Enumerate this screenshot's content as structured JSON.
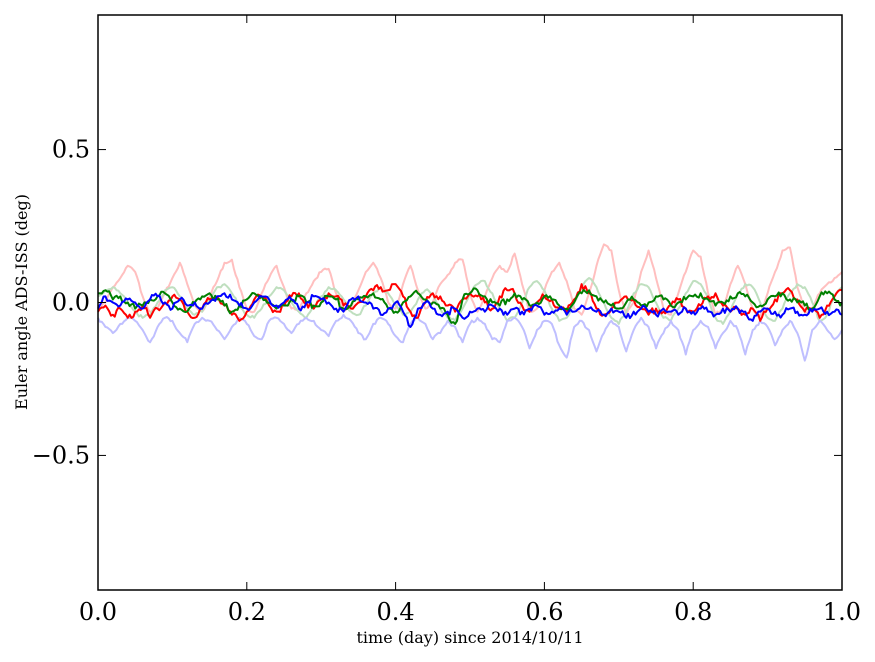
{
  "chart_data": {
    "type": "line",
    "title": "",
    "xlabel": "time (day) since 2014/10/11",
    "ylabel": "Euler angle ADS-ISS (deg)",
    "xlim": [
      0.0,
      1.0
    ],
    "ylim": [
      -0.94,
      0.94
    ],
    "xticks": [
      0.0,
      0.2,
      0.4,
      0.6,
      0.8,
      1.0
    ],
    "xtick_labels": [
      "0.0",
      "0.2",
      "0.4",
      "0.6",
      "0.8",
      "1.0"
    ],
    "yticks": [
      -0.5,
      0.0,
      0.5
    ],
    "ytick_labels": [
      "−0.5",
      "0.0",
      "0.5"
    ],
    "grid": false,
    "x_step": 0.01,
    "series": [
      {
        "name": "light-red",
        "color": "#ffbfbf",
        "values": [
          -0.02,
          0.0,
          0.05,
          0.08,
          0.12,
          0.1,
          0.02,
          -0.03,
          -0.02,
          0.03,
          0.08,
          0.13,
          0.06,
          -0.01,
          -0.03,
          0.02,
          0.07,
          0.13,
          0.14,
          0.05,
          -0.02,
          -0.03,
          0.03,
          0.08,
          0.12,
          0.05,
          -0.02,
          -0.03,
          0.03,
          0.07,
          0.1,
          0.11,
          0.03,
          -0.02,
          -0.02,
          0.04,
          0.1,
          0.13,
          0.08,
          0.0,
          -0.02,
          0.06,
          0.12,
          0.04,
          -0.02,
          0.0,
          0.06,
          0.09,
          0.13,
          0.14,
          0.03,
          -0.03,
          0.02,
          0.08,
          0.12,
          0.1,
          0.16,
          0.06,
          -0.03,
          -0.02,
          0.04,
          0.1,
          0.13,
          0.07,
          -0.02,
          -0.04,
          0.03,
          0.12,
          0.19,
          0.17,
          0.04,
          -0.04,
          0.0,
          0.1,
          0.17,
          0.08,
          -0.02,
          -0.04,
          0.03,
          0.1,
          0.17,
          0.15,
          0.03,
          -0.04,
          -0.02,
          0.06,
          0.12,
          0.06,
          -0.02,
          -0.05,
          0.03,
          0.1,
          0.17,
          0.18,
          0.05,
          -0.03,
          -0.02,
          0.03,
          0.06,
          0.08,
          0.1
        ]
      },
      {
        "name": "light-green",
        "color": "#bfdfbf",
        "values": [
          0.02,
          0.04,
          0.05,
          0.03,
          0.0,
          -0.03,
          -0.05,
          -0.04,
          0.0,
          0.04,
          0.05,
          0.02,
          -0.02,
          -0.04,
          -0.03,
          0.01,
          0.05,
          0.06,
          0.03,
          -0.01,
          -0.04,
          -0.05,
          -0.02,
          0.02,
          0.05,
          0.04,
          0.0,
          -0.03,
          -0.05,
          -0.02,
          0.02,
          0.05,
          0.04,
          0.01,
          -0.03,
          -0.04,
          -0.01,
          0.03,
          0.05,
          0.03,
          -0.01,
          -0.04,
          -0.03,
          0.01,
          0.04,
          0.03,
          -0.02,
          -0.05,
          -0.06,
          -0.02,
          0.03,
          0.06,
          0.07,
          0.03,
          -0.02,
          -0.06,
          -0.05,
          0.0,
          0.05,
          0.07,
          0.04,
          -0.02,
          -0.06,
          -0.05,
          0.0,
          0.05,
          0.08,
          0.05,
          0.0,
          -0.05,
          -0.07,
          -0.03,
          0.03,
          0.06,
          0.05,
          0.0,
          -0.05,
          -0.06,
          -0.02,
          0.03,
          0.07,
          0.06,
          0.01,
          -0.05,
          -0.07,
          -0.03,
          0.03,
          0.06,
          0.05,
          0.0,
          -0.05,
          -0.06,
          -0.02,
          0.03,
          0.06,
          0.05,
          0.0,
          -0.06,
          -0.04,
          0.02,
          0.05
        ]
      },
      {
        "name": "light-blue",
        "color": "#bfbfff",
        "values": [
          -0.05,
          -0.08,
          -0.1,
          -0.07,
          -0.05,
          -0.06,
          -0.09,
          -0.13,
          -0.08,
          -0.05,
          -0.06,
          -0.1,
          -0.13,
          -0.07,
          -0.05,
          -0.06,
          -0.09,
          -0.12,
          -0.08,
          -0.05,
          -0.07,
          -0.11,
          -0.12,
          -0.06,
          -0.05,
          -0.07,
          -0.1,
          -0.07,
          -0.05,
          -0.06,
          -0.09,
          -0.11,
          -0.06,
          -0.04,
          -0.06,
          -0.1,
          -0.12,
          -0.07,
          -0.05,
          -0.07,
          -0.11,
          -0.13,
          -0.07,
          -0.05,
          -0.07,
          -0.12,
          -0.1,
          -0.06,
          -0.08,
          -0.13,
          -0.07,
          -0.05,
          -0.07,
          -0.12,
          -0.13,
          -0.06,
          -0.05,
          -0.08,
          -0.15,
          -0.09,
          -0.06,
          -0.07,
          -0.14,
          -0.18,
          -0.08,
          -0.06,
          -0.09,
          -0.16,
          -0.1,
          -0.06,
          -0.08,
          -0.16,
          -0.09,
          -0.05,
          -0.08,
          -0.15,
          -0.1,
          -0.06,
          -0.09,
          -0.17,
          -0.09,
          -0.06,
          -0.08,
          -0.15,
          -0.1,
          -0.06,
          -0.09,
          -0.17,
          -0.09,
          -0.06,
          -0.08,
          -0.14,
          -0.09,
          -0.06,
          -0.1,
          -0.19,
          -0.09,
          -0.06,
          -0.09,
          -0.12,
          -0.09
        ]
      },
      {
        "name": "red",
        "color": "#ff0000",
        "values": [
          -0.03,
          -0.01,
          -0.04,
          -0.02,
          -0.05,
          -0.03,
          -0.01,
          -0.05,
          -0.02,
          0.0,
          0.02,
          0.01,
          -0.03,
          -0.05,
          -0.02,
          0.01,
          0.02,
          -0.01,
          -0.04,
          -0.06,
          -0.03,
          0.01,
          0.02,
          -0.01,
          -0.03,
          -0.01,
          0.02,
          0.03,
          0.0,
          -0.02,
          0.01,
          0.03,
          0.02,
          -0.01,
          -0.02,
          0.0,
          0.02,
          0.04,
          0.05,
          0.04,
          0.06,
          0.02,
          -0.03,
          -0.05,
          0.0,
          0.03,
          0.02,
          -0.01,
          -0.03,
          0.01,
          0.03,
          0.02,
          0.0,
          -0.02,
          0.02,
          0.04,
          0.03,
          -0.01,
          -0.03,
          0.0,
          0.02,
          0.01,
          -0.02,
          -0.03,
          0.01,
          0.06,
          0.03,
          -0.02,
          -0.04,
          -0.02,
          0.0,
          0.02,
          0.01,
          -0.02,
          -0.04,
          -0.02,
          -0.03,
          -0.01,
          0.01,
          -0.02,
          -0.03,
          -0.01,
          0.02,
          0.03,
          -0.01,
          -0.03,
          -0.02,
          -0.04,
          -0.02,
          -0.06,
          -0.02,
          0.01,
          0.03,
          0.04,
          0.01,
          -0.03,
          -0.02,
          -0.05,
          -0.01,
          0.02,
          0.04
        ]
      },
      {
        "name": "green",
        "color": "#008000",
        "values": [
          0.03,
          0.04,
          0.01,
          0.02,
          0.0,
          -0.02,
          -0.01,
          0.01,
          0.02,
          0.03,
          0.0,
          -0.02,
          -0.03,
          0.0,
          0.02,
          0.03,
          0.01,
          -0.01,
          -0.03,
          -0.01,
          0.01,
          0.03,
          0.02,
          0.0,
          -0.02,
          -0.01,
          0.01,
          0.02,
          0.0,
          -0.01,
          0.0,
          0.02,
          0.01,
          -0.02,
          -0.01,
          0.01,
          0.02,
          0.03,
          0.01,
          -0.02,
          -0.03,
          0.0,
          0.02,
          0.03,
          0.01,
          0.0,
          -0.02,
          -0.04,
          -0.07,
          0.01,
          0.03,
          0.04,
          0.02,
          0.0,
          -0.01,
          0.01,
          0.03,
          0.01,
          -0.01,
          0.0,
          0.02,
          0.01,
          -0.01,
          -0.02,
          0.0,
          0.03,
          0.04,
          0.02,
          0.0,
          -0.01,
          -0.02,
          0.0,
          0.01,
          -0.01,
          0.0,
          0.02,
          0.01,
          -0.01,
          0.0,
          0.01,
          0.02,
          0.03,
          0.01,
          -0.01,
          0.0,
          0.02,
          0.03,
          0.02,
          0.0,
          -0.01,
          0.01,
          0.02,
          0.03,
          0.01,
          0.0,
          -0.01,
          -0.02,
          0.02,
          0.03,
          0.01,
          0.0
        ]
      },
      {
        "name": "blue",
        "color": "#0000ff",
        "values": [
          -0.02,
          0.02,
          0.0,
          -0.01,
          0.01,
          0.0,
          -0.02,
          0.01,
          0.02,
          0.0,
          -0.02,
          0.01,
          -0.01,
          0.0,
          -0.02,
          0.0,
          0.02,
          0.03,
          0.01,
          -0.01,
          -0.02,
          0.0,
          0.02,
          0.01,
          -0.01,
          0.0,
          0.01,
          -0.02,
          0.0,
          0.02,
          0.01,
          0.0,
          -0.02,
          -0.03,
          0.01,
          0.02,
          0.0,
          -0.02,
          -0.04,
          -0.02,
          0.0,
          -0.03,
          -0.08,
          -0.02,
          0.0,
          -0.02,
          -0.04,
          -0.03,
          -0.02,
          -0.05,
          -0.03,
          -0.02,
          -0.03,
          -0.01,
          -0.02,
          -0.04,
          -0.02,
          -0.03,
          -0.02,
          -0.01,
          -0.04,
          -0.03,
          -0.02,
          -0.04,
          -0.03,
          -0.01,
          -0.02,
          -0.03,
          -0.04,
          -0.02,
          -0.03,
          -0.05,
          -0.03,
          -0.02,
          -0.03,
          -0.04,
          -0.02,
          -0.03,
          -0.04,
          -0.02,
          -0.03,
          -0.02,
          -0.03,
          -0.04,
          -0.02,
          -0.03,
          -0.02,
          -0.03,
          -0.06,
          -0.03,
          -0.02,
          -0.03,
          -0.04,
          -0.02,
          -0.03,
          -0.04,
          -0.03,
          -0.02,
          -0.03,
          -0.03,
          -0.04
        ]
      }
    ]
  }
}
